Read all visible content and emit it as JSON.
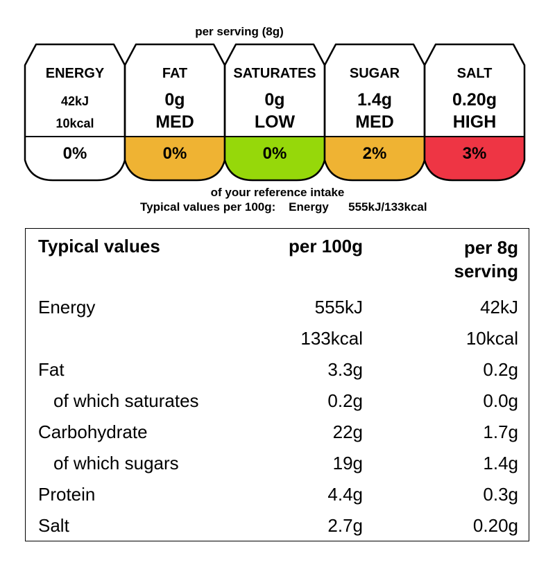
{
  "label": {
    "per_serving_title": "per serving  (8g)",
    "gda": [
      {
        "name": "ENERGY",
        "line1": "42kJ",
        "line2": "10kcal",
        "percent": "0%",
        "color": "#ffffff"
      },
      {
        "name": "FAT",
        "line1": "0g",
        "line2": "MED",
        "percent": "0%",
        "color": "#efb333"
      },
      {
        "name": "SATURATES",
        "line1": "0g",
        "line2": "LOW",
        "percent": "0%",
        "color": "#96d80a"
      },
      {
        "name": "SUGAR",
        "line1": "1.4g",
        "line2": "MED",
        "percent": "2%",
        "color": "#efb333"
      },
      {
        "name": "SALT",
        "line1": "0.20g",
        "line2": "HIGH",
        "percent": "3%",
        "color": "#ee3544"
      }
    ],
    "reference_text": "of your reference intake",
    "typical_per100_text": "Typical values per 100g:    Energy      555kJ/133kcal"
  },
  "table": {
    "headers": {
      "col1": "Typical values",
      "col2": "per 100g",
      "col3_line1": "per 8g",
      "col3_line2": "serving"
    },
    "rows": [
      {
        "name": "Energy",
        "per100": "555kJ",
        "serving": "42kJ",
        "indent": false
      },
      {
        "name": "",
        "per100": "133kcal",
        "serving": "10kcal",
        "indent": false
      },
      {
        "name": "Fat",
        "per100": "3.3g",
        "serving": "0.2g",
        "indent": false
      },
      {
        "name": "of which saturates",
        "per100": "0.2g",
        "serving": "0.0g",
        "indent": true
      },
      {
        "name": "Carbohydrate",
        "per100": "22g",
        "serving": "1.7g",
        "indent": false
      },
      {
        "name": "of which sugars",
        "per100": "19g",
        "serving": "1.4g",
        "indent": true
      },
      {
        "name": "Protein",
        "per100": "4.4g",
        "serving": "0.3g",
        "indent": false
      },
      {
        "name": "Salt",
        "per100": "2.7g",
        "serving": "0.20g",
        "indent": false
      }
    ]
  }
}
